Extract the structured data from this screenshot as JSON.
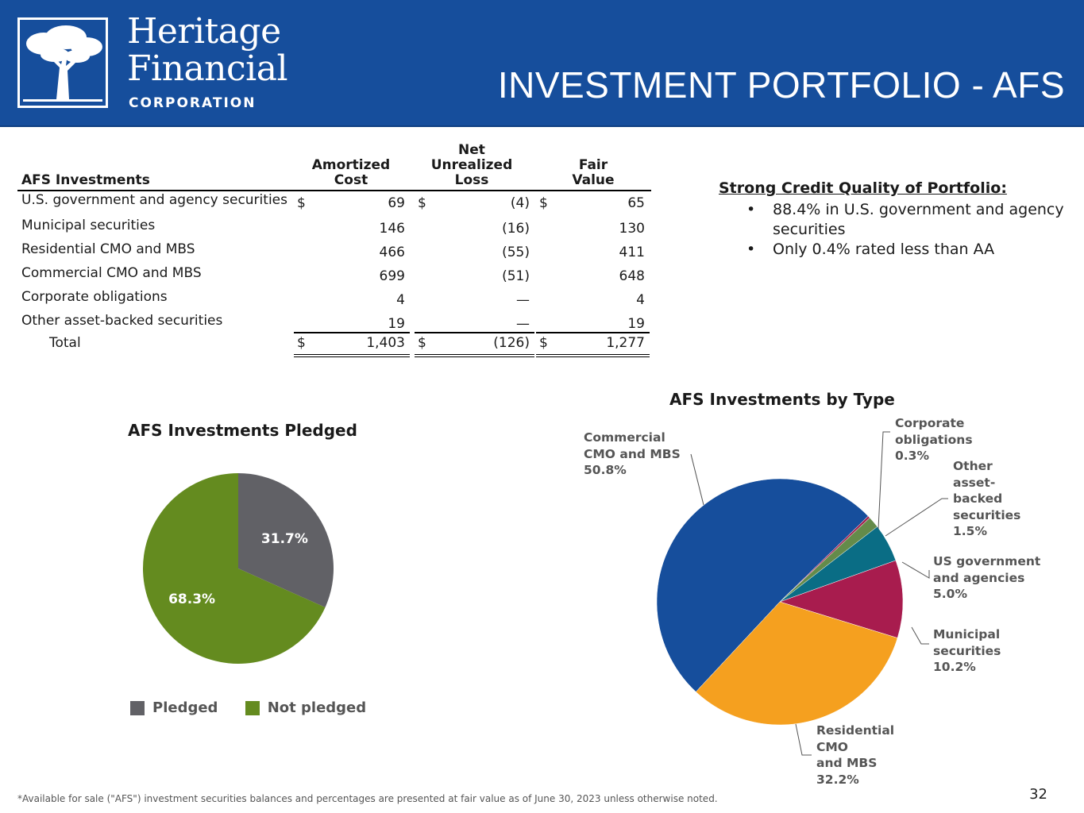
{
  "header": {
    "logo_line1": "Heritage",
    "logo_line2": "Financial",
    "logo_line3": "CORPORATION",
    "title": "INVESTMENT PORTFOLIO - AFS",
    "bg_color": "#164e9c"
  },
  "table": {
    "headers": {
      "label": "AFS Investments",
      "amortized_cost": [
        "Amortized",
        "Cost"
      ],
      "net_unrealized_loss": [
        "Net",
        "Unrealized",
        "Loss"
      ],
      "fair_value": [
        "Fair",
        "Value"
      ]
    },
    "rows": [
      {
        "label": "U.S. government and agency securities",
        "cost": "69",
        "loss": "(4)",
        "fair": "65",
        "dollar": "$"
      },
      {
        "label": "Municipal securities",
        "cost": "146",
        "loss": "(16)",
        "fair": "130",
        "dollar": ""
      },
      {
        "label": "Residential CMO and MBS",
        "cost": "466",
        "loss": "(55)",
        "fair": "411",
        "dollar": ""
      },
      {
        "label": "Commercial CMO and MBS",
        "cost": "699",
        "loss": "(51)",
        "fair": "648",
        "dollar": ""
      },
      {
        "label": "Corporate obligations",
        "cost": "4",
        "loss": "—",
        "fair": "4",
        "dollar": ""
      },
      {
        "label": "Other asset-backed securities",
        "cost": "19",
        "loss": "—",
        "fair": "19",
        "dollar": ""
      }
    ],
    "total": {
      "label": "Total",
      "cost": "1,403",
      "loss": "(126)",
      "fair": "1,277",
      "dollar": "$"
    }
  },
  "credit_quality": {
    "heading": "Strong Credit Quality of Portfolio:",
    "bullets": [
      "88.4%  in U.S. government and agency securities",
      "Only 0.4% rated less than AA"
    ]
  },
  "chart_data": [
    {
      "type": "pie",
      "title": "AFS Investments Pledged",
      "categories": [
        "Pledged",
        "Not pledged"
      ],
      "values": [
        31.7,
        68.3
      ],
      "labels": [
        "31.7%",
        "68.3%"
      ],
      "colors": [
        "#616166",
        "#648b1f"
      ],
      "legend": "bottom"
    },
    {
      "type": "pie",
      "title": "AFS Investments by Type",
      "categories": [
        "Commercial CMO and MBS",
        "Corporate obligations",
        "Other asset-backed securities",
        "US government and agencies",
        "Municipal securities",
        "Residential CMO and MBS"
      ],
      "values": [
        50.8,
        0.3,
        1.5,
        5.0,
        10.2,
        32.2
      ],
      "colors": [
        "#164e9c",
        "#a3224f",
        "#648b4a",
        "#0a6d85",
        "#a81c4e",
        "#f5a01f"
      ]
    }
  ],
  "type_labels": [
    {
      "lines": [
        "Commercial",
        "CMO and MBS",
        "50.8%"
      ]
    },
    {
      "lines": [
        "Corporate",
        "obligations",
        "0.3%"
      ]
    },
    {
      "lines": [
        "Other",
        "asset-",
        "backed",
        "securities",
        "1.5%"
      ]
    },
    {
      "lines": [
        "US government",
        "and agencies",
        "5.0%"
      ]
    },
    {
      "lines": [
        "Municipal",
        "securities",
        "10.2%"
      ]
    },
    {
      "lines": [
        "Residential",
        "CMO",
        "and MBS",
        "32.2%"
      ]
    }
  ],
  "footnote": "*Available for sale (\"AFS\") investment securities balances and percentages are presented at fair value as of June 30, 2023 unless otherwise noted.",
  "page_number": "32"
}
